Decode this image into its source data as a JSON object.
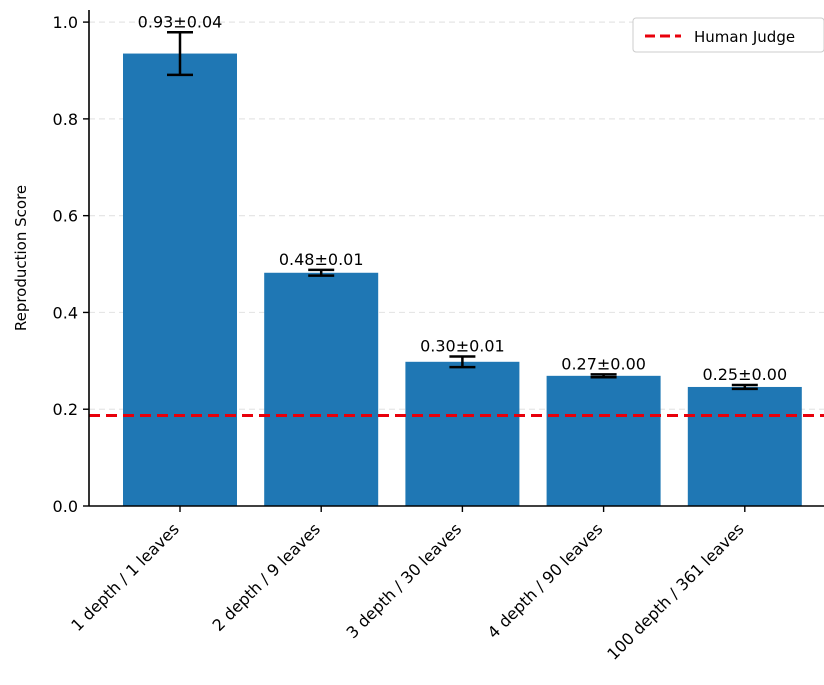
{
  "chart_data": {
    "type": "bar",
    "title": "",
    "xlabel": "",
    "ylabel": "Reproduction Score",
    "categories": [
      "1 depth / 1 leaves",
      "2 depth / 9 leaves",
      "3 depth / 30 leaves",
      "4 depth / 90 leaves",
      "100 depth / 361 leaves"
    ],
    "values": [
      0.935,
      0.482,
      0.298,
      0.269,
      0.246
    ],
    "errors": [
      0.044,
      0.006,
      0.011,
      0.003,
      0.004
    ],
    "data_labels": [
      "0.93±0.04",
      "0.48±0.01",
      "0.30±0.01",
      "0.27±0.00",
      "0.25±0.00"
    ],
    "yticks": [
      "0.0",
      "0.2",
      "0.4",
      "0.6",
      "0.8",
      "1.0"
    ],
    "ylim": [
      0,
      1.025
    ],
    "grid": "y-dashed",
    "reference_line": {
      "name": "Human Judge",
      "value": 0.187,
      "style": "dashed"
    },
    "legend": {
      "position": "top-right",
      "entries": [
        "Human Judge"
      ]
    },
    "colors": {
      "bar": "#1f77b4",
      "reference": "#e8000b",
      "error_bar": "#000000",
      "grid": "#e6e6e6"
    }
  }
}
